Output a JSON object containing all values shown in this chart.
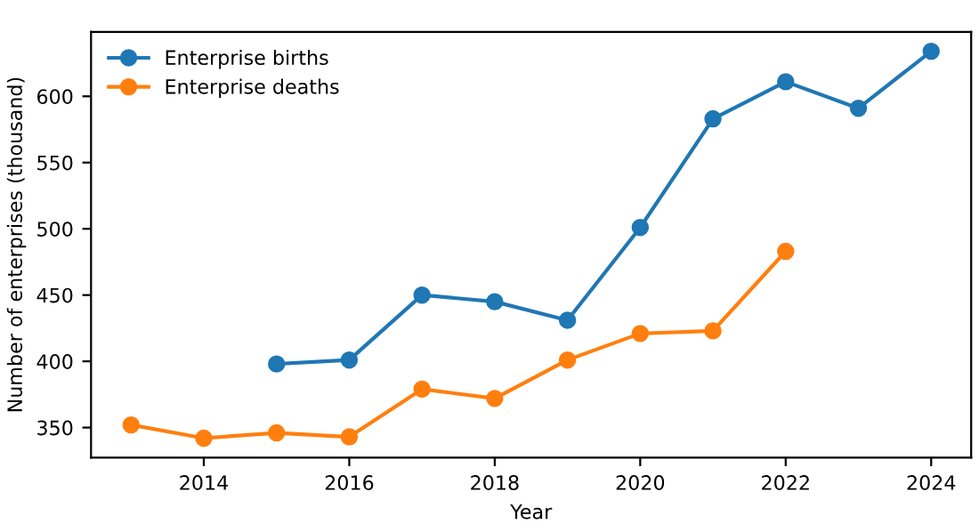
{
  "chart_data": {
    "type": "line",
    "xlabel": "Year",
    "ylabel": "Number of enterprises (thousand)",
    "x": [
      2013,
      2014,
      2015,
      2016,
      2017,
      2018,
      2019,
      2020,
      2021,
      2022,
      2023,
      2024
    ],
    "series": [
      {
        "name": "Enterprise births",
        "color": "#1f77b4",
        "values": [
          null,
          null,
          398,
          401,
          450,
          445,
          431,
          501,
          583,
          611,
          591,
          634
        ]
      },
      {
        "name": "Enterprise deaths",
        "color": "#ff7f0e",
        "values": [
          352,
          342,
          346,
          343,
          379,
          372,
          401,
          421,
          423,
          483,
          null,
          null
        ]
      }
    ],
    "xlim": [
      2012.45,
      2024.55
    ],
    "xticks": [
      2014,
      2016,
      2018,
      2020,
      2022,
      2024
    ],
    "ylim": [
      327.4,
      648.6
    ],
    "yticks": [
      350,
      400,
      450,
      500,
      550,
      600
    ],
    "marker": "circle",
    "line_style": "solid",
    "legend": "top left",
    "grid": false
  }
}
